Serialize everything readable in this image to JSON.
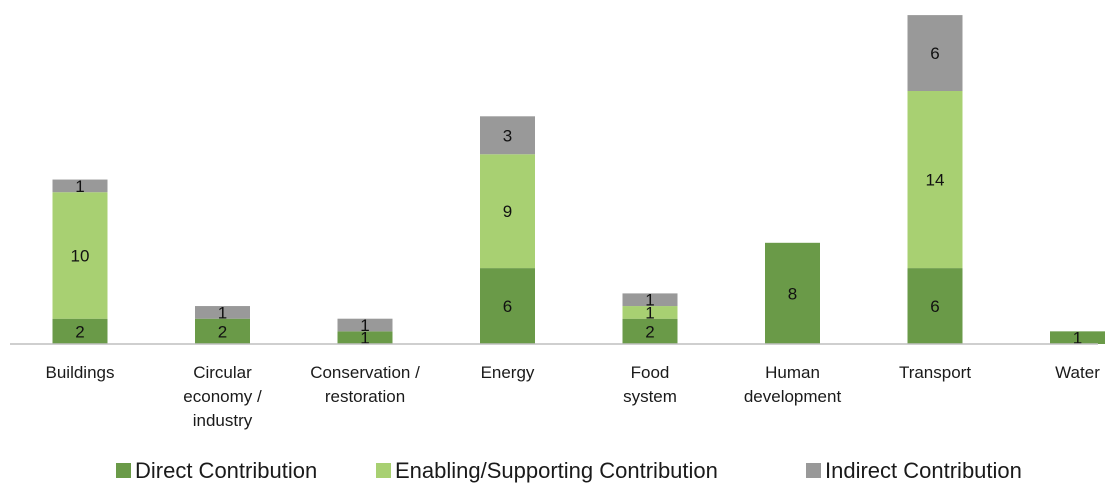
{
  "chart_data": {
    "type": "bar",
    "stacked": true,
    "title": "",
    "xlabel": "",
    "ylabel": "",
    "ylim": [
      0,
      26
    ],
    "grid": false,
    "legend_position": "bottom",
    "categories": [
      [
        "Buildings"
      ],
      [
        "Circular",
        "economy /",
        "industry"
      ],
      [
        "Conservation /",
        "restoration"
      ],
      [
        "Energy"
      ],
      [
        "Food",
        "system"
      ],
      [
        "Human",
        "development"
      ],
      [
        "Transport"
      ],
      [
        "Water"
      ]
    ],
    "series": [
      {
        "name": "Direct Contribution",
        "color": "#6a9a48",
        "values": [
          2,
          2,
          1,
          6,
          2,
          8,
          6,
          1
        ]
      },
      {
        "name": "Enabling/Supporting Contribution",
        "color": "#a8d072",
        "values": [
          10,
          0,
          0,
          9,
          1,
          0,
          14,
          0
        ]
      },
      {
        "name": "Indirect Contribution",
        "color": "#999999",
        "values": [
          1,
          1,
          1,
          3,
          1,
          0,
          6,
          0
        ]
      }
    ]
  }
}
